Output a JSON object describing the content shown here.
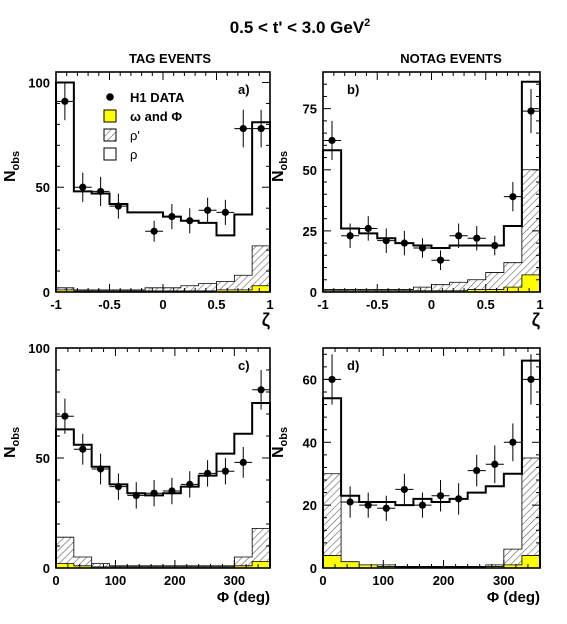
{
  "figure": {
    "title_prefix": "0.5 < t' < 3.0 GeV",
    "title_sup": "2",
    "col_left": "TAG EVENTS",
    "col_right": "NOTAG EVENTS",
    "ylabel": "N",
    "ylabel_sub": "obs"
  },
  "legend": {
    "data": "H1 DATA",
    "omega_phi": "ω and Φ",
    "rho_prime": "ρ'",
    "rho": "ρ"
  },
  "colors": {
    "yellow": "#ffff00",
    "hatch": "#555555",
    "line": "#000000"
  },
  "chart_data": [
    {
      "type": "histogram",
      "panel": "a)",
      "xlabel": "ζ",
      "xlim": [
        -1,
        1
      ],
      "ylim": [
        0,
        105
      ],
      "xticks": [
        -1,
        -0.5,
        0,
        0.5,
        1
      ],
      "xtick_labels": [
        "-1",
        "-0.5",
        "0",
        "0.5",
        "1"
      ],
      "yticks": [
        0,
        50,
        100
      ],
      "ytick_labels": [
        "0",
        "50",
        "100"
      ],
      "bin_edges": [
        -1,
        -0.833,
        -0.667,
        -0.5,
        -0.333,
        -0.167,
        0,
        0.167,
        0.333,
        0.5,
        0.667,
        0.833,
        1
      ],
      "total": [
        100,
        48,
        47,
        42,
        38,
        38,
        36,
        34,
        33,
        27,
        37,
        81
      ],
      "rho_prime": [
        2,
        1,
        1,
        1,
        1,
        2,
        2,
        3,
        4,
        5,
        8,
        22
      ],
      "omega_phi": [
        1,
        0.5,
        0.5,
        0.5,
        0.5,
        0.5,
        0.5,
        0.5,
        0.5,
        1,
        1,
        3
      ],
      "data_x": [
        -0.917,
        -0.75,
        -0.583,
        -0.417,
        -0.083,
        0.083,
        0.25,
        0.417,
        0.583,
        0.75,
        0.917
      ],
      "data_y": [
        91,
        50,
        48,
        41,
        29,
        36,
        34,
        39,
        38,
        78,
        78
      ],
      "data_err": [
        9,
        7,
        7,
        6,
        5,
        6,
        6,
        6,
        6,
        9,
        9
      ]
    },
    {
      "type": "histogram",
      "panel": "b)",
      "xlabel": "ζ",
      "xlim": [
        -1,
        1
      ],
      "ylim": [
        0,
        90
      ],
      "xticks": [
        -1,
        -0.5,
        0,
        0.5,
        1
      ],
      "xtick_labels": [
        "-1",
        "-0.5",
        "0",
        "0.5",
        "1"
      ],
      "yticks": [
        0,
        25,
        50,
        75
      ],
      "ytick_labels": [
        "0",
        "25",
        "50",
        "75"
      ],
      "bin_edges": [
        -1,
        -0.833,
        -0.667,
        -0.5,
        -0.333,
        -0.167,
        0,
        0.167,
        0.333,
        0.5,
        0.667,
        0.833,
        1
      ],
      "total": [
        58,
        26,
        24,
        22,
        20,
        19,
        18,
        19,
        19,
        19,
        27,
        86
      ],
      "rho_prime": [
        1,
        1,
        1,
        1,
        1,
        2,
        3,
        4,
        5,
        8,
        12,
        50
      ],
      "omega_phi": [
        0.5,
        0.5,
        0.5,
        0.5,
        0.5,
        0.5,
        0.5,
        0.5,
        1,
        1,
        2,
        7
      ],
      "data_x": [
        -0.917,
        -0.75,
        -0.583,
        -0.417,
        -0.25,
        -0.083,
        0.083,
        0.25,
        0.417,
        0.583,
        0.75,
        0.917
      ],
      "data_y": [
        62,
        23,
        26,
        21,
        20,
        18,
        13,
        23,
        22,
        19,
        39,
        74
      ],
      "data_err": [
        8,
        5,
        5,
        5,
        5,
        4,
        4,
        5,
        5,
        4,
        6,
        9
      ]
    },
    {
      "type": "histogram",
      "panel": "c)",
      "xlabel": "Φ (deg)",
      "xlim": [
        0,
        360
      ],
      "ylim": [
        0,
        100
      ],
      "xticks": [
        0,
        100,
        200,
        300
      ],
      "xtick_labels": [
        "0",
        "100",
        "200",
        "300"
      ],
      "yticks": [
        0,
        50,
        100
      ],
      "ytick_labels": [
        "0",
        "50",
        "100"
      ],
      "bin_edges": [
        0,
        30,
        60,
        90,
        120,
        150,
        180,
        210,
        240,
        270,
        300,
        330,
        360
      ],
      "total": [
        63,
        56,
        46,
        38,
        34,
        33,
        34,
        37,
        42,
        52,
        61,
        75
      ],
      "rho_prime": [
        14,
        5,
        2,
        1,
        1,
        1,
        1,
        1,
        1,
        1,
        5,
        18
      ],
      "omega_phi": [
        2,
        1,
        0.5,
        0.5,
        0.5,
        0.5,
        0.5,
        0.5,
        0.5,
        0.5,
        1,
        3
      ],
      "data_x": [
        15,
        45,
        75,
        105,
        135,
        165,
        195,
        225,
        255,
        285,
        315,
        345
      ],
      "data_y": [
        69,
        54,
        45,
        37,
        33,
        34,
        35,
        38,
        43,
        44,
        48,
        81
      ],
      "data_err": [
        8,
        7,
        7,
        6,
        6,
        6,
        6,
        6,
        6,
        6,
        7,
        9
      ]
    },
    {
      "type": "histogram",
      "panel": "d)",
      "xlabel": "Φ (deg)",
      "xlim": [
        0,
        360
      ],
      "ylim": [
        0,
        70
      ],
      "xticks": [
        0,
        100,
        200,
        300
      ],
      "xtick_labels": [
        "0",
        "100",
        "200",
        "300"
      ],
      "yticks": [
        0,
        20,
        40,
        60
      ],
      "ytick_labels": [
        "0",
        "20",
        "40",
        "60"
      ],
      "bin_edges": [
        0,
        30,
        60,
        90,
        120,
        150,
        180,
        210,
        240,
        270,
        300,
        330,
        360
      ],
      "total": [
        54,
        23,
        21,
        21,
        20,
        22,
        21,
        22,
        24,
        26,
        30,
        66
      ],
      "rho_prime": [
        30,
        2,
        1,
        1,
        0.5,
        0.5,
        0.5,
        0.5,
        0.5,
        1,
        6,
        35
      ],
      "omega_phi": [
        4,
        2,
        1,
        0.5,
        0.3,
        0.3,
        0.3,
        0.3,
        0.3,
        0.5,
        1,
        4
      ],
      "data_x": [
        15,
        45,
        75,
        105,
        135,
        165,
        195,
        225,
        255,
        285,
        315,
        345
      ],
      "data_y": [
        60,
        21,
        20,
        19,
        25,
        20,
        23,
        22,
        31,
        33,
        40,
        60
      ],
      "data_err": [
        8,
        5,
        4,
        4,
        5,
        4,
        5,
        5,
        5,
        6,
        6,
        8
      ]
    }
  ]
}
